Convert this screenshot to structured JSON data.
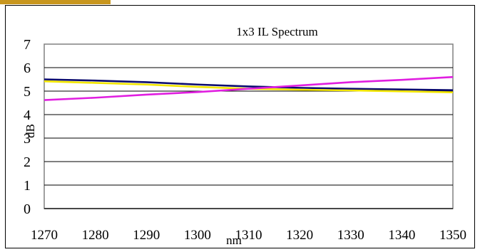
{
  "chart_data": {
    "type": "line",
    "title": "1x3 IL Spectrum",
    "xlabel": "nm",
    "ylabel": "dB",
    "x": [
      1270,
      1280,
      1290,
      1300,
      1310,
      1320,
      1330,
      1340,
      1350
    ],
    "xlim": [
      1270,
      1350
    ],
    "ylim": [
      0,
      7
    ],
    "y_ticks": [
      0,
      1,
      2,
      3,
      4,
      5,
      6,
      7
    ],
    "grid": "horizontal",
    "legend": "none",
    "series": [
      {
        "color": "#0a0a6e",
        "values": [
          5.5,
          5.45,
          5.38,
          5.28,
          5.2,
          5.14,
          5.1,
          5.07,
          5.04
        ]
      },
      {
        "color": "#f2e600",
        "values": [
          5.42,
          5.35,
          5.28,
          5.18,
          5.1,
          5.06,
          5.03,
          4.99,
          4.95
        ]
      },
      {
        "color": "#e01ee0",
        "values": [
          4.62,
          4.72,
          4.85,
          4.96,
          5.1,
          5.24,
          5.38,
          5.48,
          5.6
        ]
      }
    ]
  }
}
